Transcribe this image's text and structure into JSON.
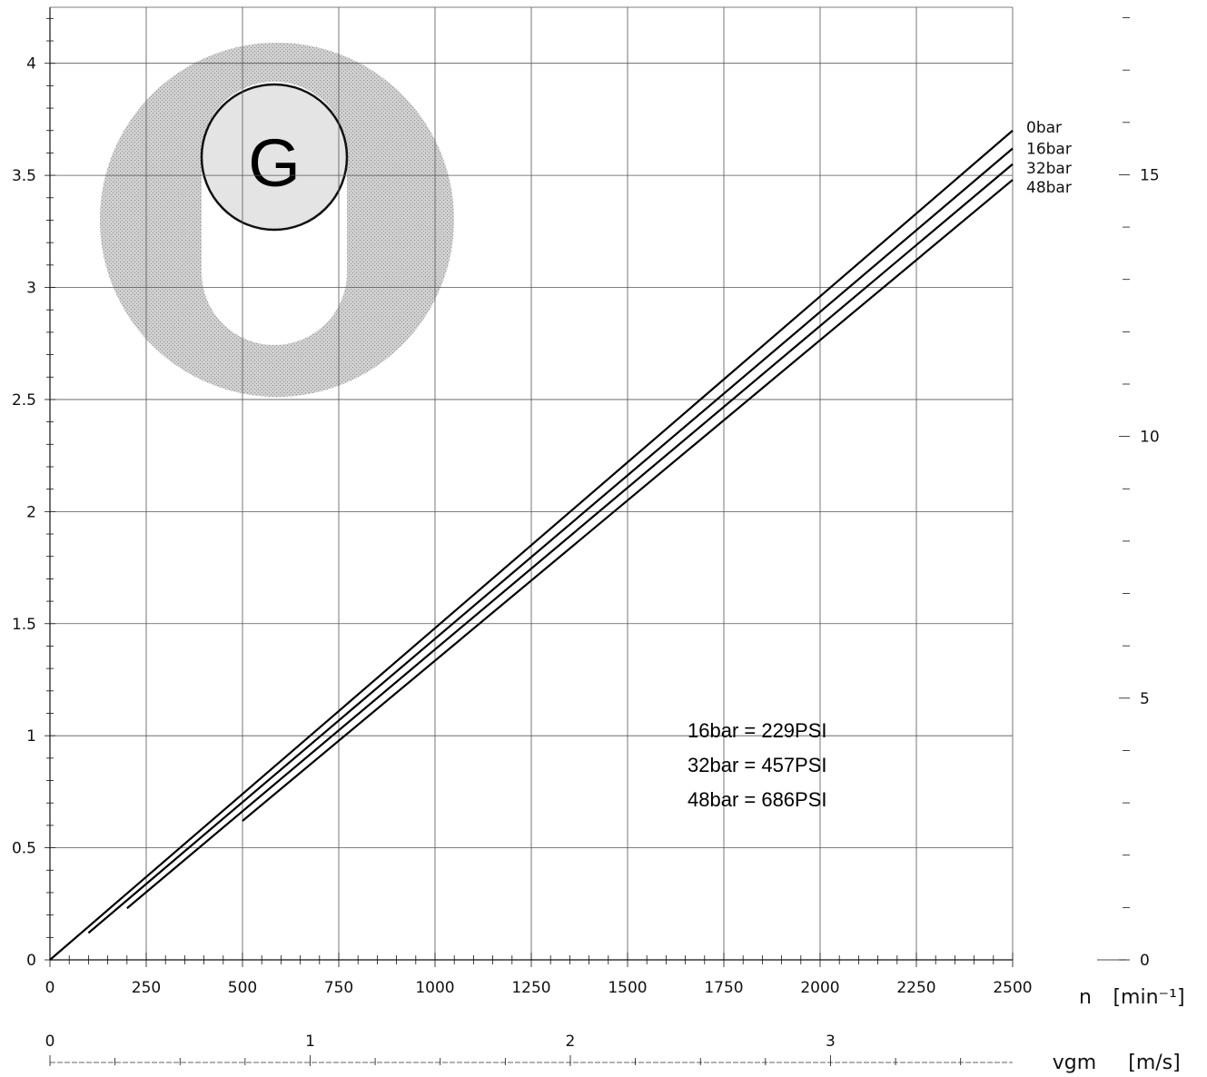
{
  "chart_data": {
    "type": "line",
    "xlabel_main": "n",
    "xunit_main": "[min⁻¹]",
    "xlabel_secondary": "vgm",
    "xunit_secondary": "[m/s]",
    "xlim": [
      0,
      2500
    ],
    "ylim": [
      0,
      4.25
    ],
    "y2lim": [
      0,
      18.2
    ],
    "vlim": [
      0,
      3.7
    ],
    "x_ticks": [
      0,
      250,
      500,
      750,
      1000,
      1250,
      1500,
      1750,
      2000,
      2250,
      2500
    ],
    "x_tick_labels": [
      "0",
      "250",
      "500",
      "750",
      "1000",
      "1250",
      "1500",
      "1750",
      "2000",
      "2250",
      "2500"
    ],
    "y_ticks": [
      0,
      0.5,
      1,
      1.5,
      2,
      2.5,
      3,
      3.5,
      4
    ],
    "y_tick_labels": [
      "0",
      "0.5",
      "1",
      "1.5",
      "2",
      "2.5",
      "3",
      "3.5",
      "4"
    ],
    "y2_ticks": [
      0,
      5,
      10,
      15
    ],
    "y2_tick_labels": [
      "0",
      "5",
      "10",
      "15"
    ],
    "v_ticks": [
      0,
      1,
      2,
      3
    ],
    "v_tick_labels": [
      "0",
      "1",
      "2",
      "3"
    ],
    "grid": true,
    "series": [
      {
        "name": "0bar",
        "x": [
          0,
          2500
        ],
        "y": [
          0,
          3.7
        ]
      },
      {
        "name": "16bar",
        "x": [
          100,
          2500
        ],
        "y": [
          0.12,
          3.62
        ]
      },
      {
        "name": "32bar",
        "x": [
          200,
          2500
        ],
        "y": [
          0.23,
          3.55
        ]
      },
      {
        "name": "48bar",
        "x": [
          500,
          2500
        ],
        "y": [
          0.62,
          3.48
        ]
      }
    ],
    "annotations": [
      "16bar = 229PSI",
      "32bar = 457PSI",
      "48bar = 686PSI"
    ],
    "logo": {
      "letter": "G"
    }
  }
}
